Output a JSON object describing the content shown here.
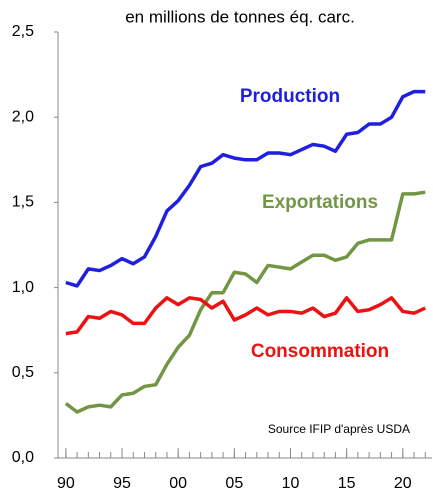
{
  "chart_data": {
    "type": "line",
    "subtitle": "en millions de tonnes éq. carc.",
    "annotation": "Source IFIP d'après USDA",
    "x": [
      1990,
      1991,
      1992,
      1993,
      1994,
      1995,
      1996,
      1997,
      1998,
      1999,
      2000,
      2001,
      2002,
      2003,
      2004,
      2005,
      2006,
      2007,
      2008,
      2009,
      2010,
      2011,
      2012,
      2013,
      2014,
      2015,
      2016,
      2017,
      2018,
      2019,
      2020,
      2021,
      2022
    ],
    "series": [
      {
        "name": "Production",
        "color": "#1f1fe0",
        "values": [
          1.03,
          1.01,
          1.11,
          1.1,
          1.13,
          1.17,
          1.14,
          1.18,
          1.3,
          1.45,
          1.51,
          1.6,
          1.71,
          1.73,
          1.78,
          1.76,
          1.75,
          1.75,
          1.79,
          1.79,
          1.78,
          1.81,
          1.84,
          1.83,
          1.8,
          1.9,
          1.91,
          1.96,
          1.96,
          2.0,
          2.12,
          2.15,
          2.15
        ]
      },
      {
        "name": "Exportations",
        "color": "#739645",
        "values": [
          0.32,
          0.27,
          0.3,
          0.31,
          0.3,
          0.37,
          0.38,
          0.42,
          0.43,
          0.55,
          0.65,
          0.72,
          0.87,
          0.97,
          0.97,
          1.09,
          1.08,
          1.03,
          1.13,
          1.12,
          1.11,
          1.15,
          1.19,
          1.19,
          1.16,
          1.18,
          1.26,
          1.28,
          1.28,
          1.28,
          1.55,
          1.55,
          1.56
        ]
      },
      {
        "name": "Consommation",
        "color": "#ee1111",
        "values": [
          0.73,
          0.74,
          0.83,
          0.82,
          0.86,
          0.84,
          0.79,
          0.79,
          0.88,
          0.94,
          0.9,
          0.94,
          0.93,
          0.88,
          0.92,
          0.81,
          0.84,
          0.88,
          0.84,
          0.86,
          0.86,
          0.85,
          0.88,
          0.83,
          0.85,
          0.94,
          0.86,
          0.87,
          0.9,
          0.94,
          0.86,
          0.85,
          0.88
        ]
      }
    ],
    "xlim": [
      1989.3,
      2022.6
    ],
    "xticks": [
      {
        "value": 1990,
        "label": "90"
      },
      {
        "value": 1995,
        "label": "95"
      },
      {
        "value": 2000,
        "label": "00"
      },
      {
        "value": 2005,
        "label": "05"
      },
      {
        "value": 2010,
        "label": "10"
      },
      {
        "value": 2015,
        "label": "15"
      },
      {
        "value": 2020,
        "label": "20"
      }
    ],
    "xminor_ticks": [
      1990,
      1991,
      1992,
      1993,
      1994,
      1995,
      1996,
      1997,
      1998,
      1999,
      2000,
      2001,
      2002,
      2003,
      2004,
      2005,
      2006,
      2007,
      2008,
      2009,
      2010,
      2011,
      2012,
      2013,
      2014,
      2015,
      2016,
      2017,
      2018,
      2019,
      2020,
      2021,
      2022
    ],
    "ylim": [
      0,
      2.5
    ],
    "yticks": [
      {
        "value": 0,
        "label": "0,0"
      },
      {
        "value": 0.5,
        "label": "0,5"
      },
      {
        "value": 1,
        "label": "1,0"
      },
      {
        "value": 1.5,
        "label": "1,5"
      },
      {
        "value": 2,
        "label": "2,0"
      },
      {
        "value": 2.5,
        "label": "2,5"
      }
    ],
    "grid": false
  }
}
